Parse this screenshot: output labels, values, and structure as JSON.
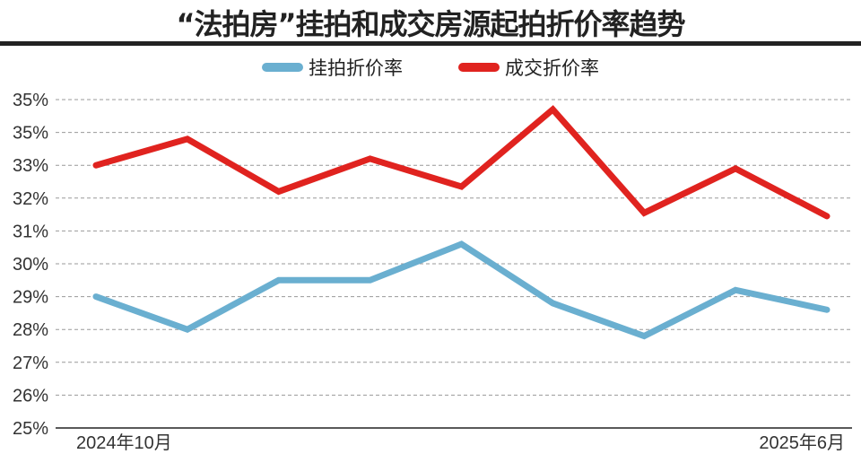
{
  "chart_data": {
    "type": "line",
    "title": "“法拍房”挂拍和成交房源起拍折价率趋势",
    "x_tick_labels": [
      "2024年10月",
      "2025年6月"
    ],
    "y_tick_labels": [
      "25%",
      "26%",
      "27%",
      "28%",
      "29%",
      "30%",
      "31%",
      "32%",
      "33%",
      "35%",
      "35%"
    ],
    "ylim": [
      25,
      35
    ],
    "grid": true,
    "legend_position": "top-center",
    "series": [
      {
        "name": "挂拍折价率",
        "color": "#6aafd0",
        "values": [
          29.0,
          28.0,
          29.5,
          29.5,
          30.6,
          28.8,
          27.8,
          29.2,
          28.6
        ]
      },
      {
        "name": "成交折价率",
        "color": "#e0231f",
        "values": [
          33.0,
          33.8,
          32.2,
          33.2,
          32.35,
          34.7,
          31.55,
          32.9,
          31.45
        ]
      }
    ]
  }
}
